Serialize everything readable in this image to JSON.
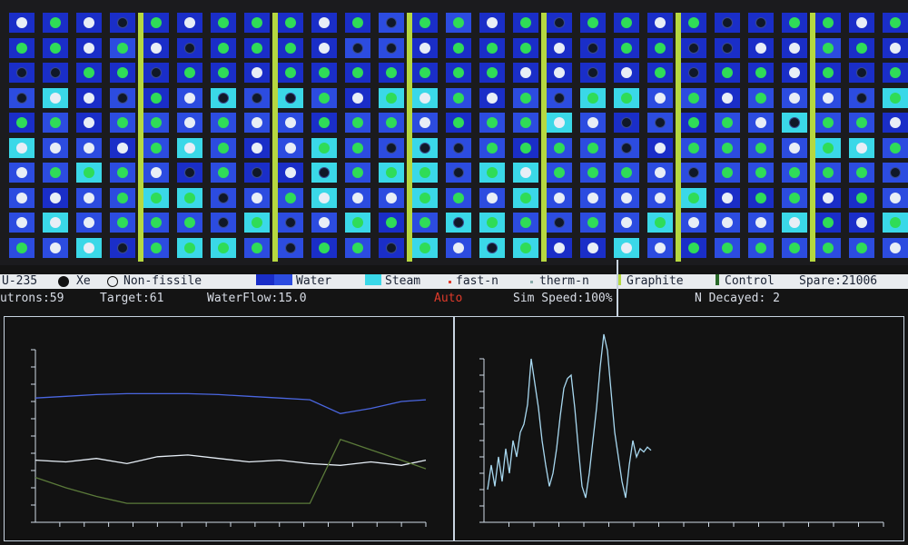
{
  "legend": {
    "u235": "U-235",
    "xe": "Xe",
    "nonfissile": "Non-fissile",
    "water": "Water",
    "steam": "Steam",
    "fast_n": "fast-n",
    "therm_n": "therm-n",
    "graphite": "Graphite",
    "control": "Control",
    "spare": "Spare:21006"
  },
  "status": {
    "neutrons": "utrons:59",
    "target": "Target:61",
    "waterflow": "WaterFlow:15.0",
    "mode": "Auto",
    "sim_speed": "Sim Speed:100%",
    "decayed": "N Decayed: 2"
  },
  "colors": {
    "water_deep": "#1a2ec8",
    "water": "#2c4ce0",
    "steam": "#3ad8e8",
    "u235": "#2fdc58",
    "xenon": "#101828",
    "nonfissile": "#e8eef6",
    "graphite_rod": "#b6d840",
    "alert": "#e03a2a",
    "trace_blue": "#4a66e0",
    "trace_white": "#e6eef6",
    "trace_green": "#5b7a3a",
    "trace_cyan": "#a8d8f0"
  },
  "reactor": {
    "rows": 10,
    "cols": 27,
    "graphite_rod_columns": [
      4,
      8,
      12,
      16,
      20,
      24
    ]
  },
  "chart_data": [
    {
      "type": "line",
      "series": [
        {
          "color": "#4a66e0",
          "x": [
            0,
            5,
            10,
            15,
            20,
            25,
            30,
            35,
            40,
            45,
            50,
            55,
            60,
            64
          ],
          "y": [
            0.72,
            0.73,
            0.74,
            0.745,
            0.745,
            0.745,
            0.74,
            0.73,
            0.72,
            0.71,
            0.63,
            0.66,
            0.7,
            0.71
          ]
        },
        {
          "color": "#e6eef6",
          "x": [
            0,
            5,
            10,
            15,
            20,
            25,
            30,
            35,
            40,
            45,
            50,
            55,
            60,
            64
          ],
          "y": [
            0.36,
            0.35,
            0.37,
            0.34,
            0.38,
            0.39,
            0.37,
            0.35,
            0.36,
            0.34,
            0.33,
            0.35,
            0.33,
            0.36
          ]
        },
        {
          "color": "#5b7a3a",
          "x": [
            0,
            5,
            10,
            15,
            20,
            25,
            30,
            35,
            40,
            45,
            50,
            55,
            60,
            64
          ],
          "y": [
            0.26,
            0.2,
            0.15,
            0.11,
            0.11,
            0.11,
            0.11,
            0.11,
            0.11,
            0.11,
            0.48,
            0.42,
            0.36,
            0.31
          ]
        }
      ]
    },
    {
      "type": "line",
      "series": [
        {
          "color": "#a8d8f0",
          "x": [
            0,
            2,
            4,
            6,
            8,
            10,
            12,
            14,
            16,
            18,
            20,
            22,
            24,
            26,
            28,
            30,
            32,
            34,
            36,
            38,
            40,
            42,
            44,
            46,
            48,
            50,
            52,
            54,
            56,
            58,
            60,
            62,
            64,
            66,
            68,
            70,
            72,
            74,
            76,
            78,
            80,
            82,
            84,
            86,
            88,
            90
          ],
          "y": [
            0.1,
            0.25,
            0.12,
            0.3,
            0.15,
            0.35,
            0.2,
            0.4,
            0.3,
            0.45,
            0.5,
            0.62,
            0.9,
            0.75,
            0.6,
            0.4,
            0.25,
            0.12,
            0.2,
            0.35,
            0.55,
            0.72,
            0.78,
            0.8,
            0.6,
            0.35,
            0.12,
            0.05,
            0.2,
            0.4,
            0.6,
            0.85,
            1.05,
            0.95,
            0.7,
            0.45,
            0.3,
            0.15,
            0.05,
            0.25,
            0.4,
            0.3,
            0.35,
            0.33,
            0.36,
            0.34
          ]
        }
      ]
    }
  ]
}
